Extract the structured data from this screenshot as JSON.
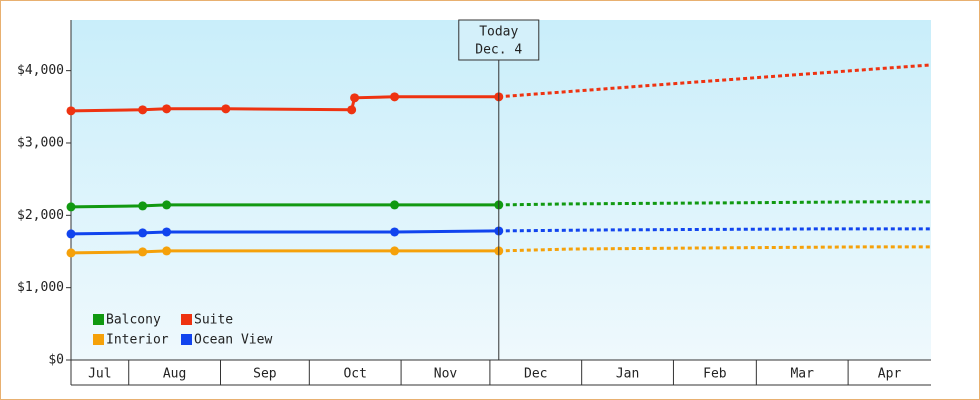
{
  "chart_data": {
    "type": "line",
    "xlim": [
      11.5,
      302
    ],
    "ylim": [
      0,
      4700
    ],
    "yticks": [
      {
        "value": 0,
        "label": "$0"
      },
      {
        "value": 1000,
        "label": "$1,000"
      },
      {
        "value": 2000,
        "label": "$2,000"
      },
      {
        "value": 3000,
        "label": "$3,000"
      },
      {
        "value": 4000,
        "label": "$4,000"
      }
    ],
    "xticks": [
      {
        "value": 0,
        "label": "Jul"
      },
      {
        "value": 31,
        "label": "Aug"
      },
      {
        "value": 62,
        "label": "Sep"
      },
      {
        "value": 92,
        "label": "Oct"
      },
      {
        "value": 123,
        "label": "Nov"
      },
      {
        "value": 153,
        "label": "Dec"
      },
      {
        "value": 184,
        "label": "Jan"
      },
      {
        "value": 215,
        "label": "Feb"
      },
      {
        "value": 243,
        "label": "Mar"
      },
      {
        "value": 274,
        "label": "Apr"
      }
    ],
    "annotation": {
      "x": 156,
      "lines": [
        "Today",
        "Dec. 4"
      ]
    },
    "series": [
      {
        "name": "Balcony",
        "color": "#119911",
        "x": [
          11.5,
          35.7,
          43.8,
          120.8,
          156
        ],
        "values": [
          2116,
          2130,
          2144,
          2144,
          2144
        ],
        "forecast": {
          "x": [
            156,
            180,
            230,
            278,
            302
          ],
          "values": [
            2144,
            2158,
            2171,
            2185,
            2185
          ]
        }
      },
      {
        "name": "Suite",
        "color": "#ee3311",
        "x": [
          11.5,
          35.7,
          43.8,
          63.8,
          106.3,
          107.3,
          120.8,
          156
        ],
        "values": [
          3444,
          3458,
          3472,
          3472,
          3458,
          3624,
          3638,
          3638
        ],
        "forecast": {
          "x": [
            156,
            215,
            302
          ],
          "values": [
            3638,
            3820,
            4080
          ]
        }
      },
      {
        "name": "Interior",
        "color": "#f5a10a",
        "x": [
          11.5,
          35.7,
          43.8,
          120.8,
          156
        ],
        "values": [
          1480,
          1494,
          1508,
          1508,
          1508
        ],
        "forecast": {
          "x": [
            156,
            181,
            229,
            278,
            302
          ],
          "values": [
            1508,
            1535,
            1549,
            1563,
            1563
          ]
        }
      },
      {
        "name": "Ocean View",
        "color": "#1144ee",
        "x": [
          11.5,
          35.7,
          43.8,
          120.8,
          156
        ],
        "values": [
          1743,
          1757,
          1770,
          1770,
          1784
        ],
        "forecast": {
          "x": [
            156,
            193,
            264,
            302
          ],
          "values": [
            1784,
            1798,
            1812,
            1812
          ]
        }
      }
    ]
  }
}
